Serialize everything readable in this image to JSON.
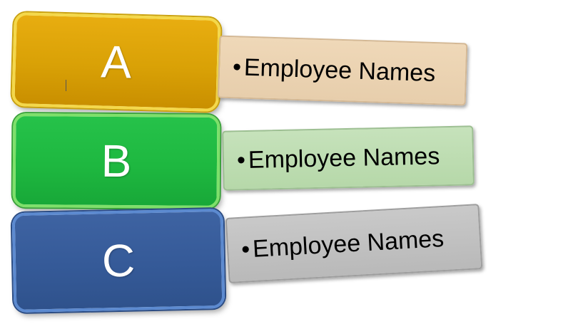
{
  "rows": [
    {
      "letter": "A",
      "bullet": "•",
      "text": "Employee Names",
      "tile_color": "#dca207",
      "label_color": "#ecd5b5"
    },
    {
      "letter": "B",
      "bullet": "•",
      "text": "Employee Names",
      "tile_color": "#1fbb42",
      "label_color": "#bfddb3"
    },
    {
      "letter": "C",
      "bullet": "•",
      "text": "Employee Names",
      "tile_color": "#375c9a",
      "label_color": "#c1c1c1"
    }
  ]
}
